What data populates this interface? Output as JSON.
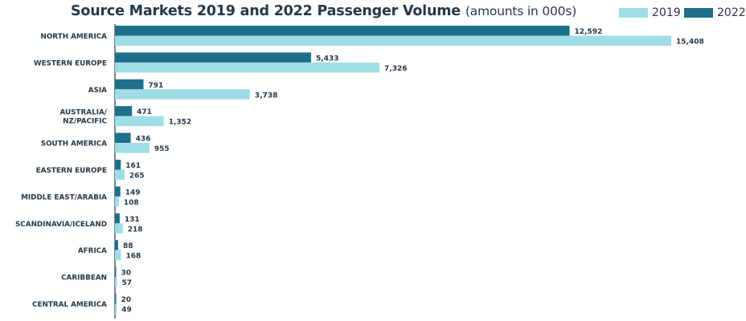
{
  "chart_data": {
    "type": "bar",
    "orientation": "horizontal",
    "title": "Source Markets 2019 and 2022 Passenger Volume",
    "subtitle": "(amounts in 000s)",
    "colors": {
      "2022": "#1e6f8a",
      "2019": "#9fdde6",
      "axis": "#24384a",
      "text": "#24384a"
    },
    "legend": {
      "placement": "top-right",
      "entries": [
        "2019",
        "2022"
      ]
    },
    "categories": [
      "NORTH AMERICA",
      "WESTERN EUROPE",
      "ASIA",
      "AUSTRALIA/\nNZ/PACIFIC",
      "SOUTH AMERICA",
      "EASTERN EUROPE",
      "MIDDLE EAST/ARABIA",
      "SCANDINAVIA/ICELAND",
      "AFRICA",
      "CARIBBEAN",
      "CENTRAL AMERICA"
    ],
    "series": [
      {
        "name": "2022",
        "values": [
          12592,
          5433,
          791,
          471,
          436,
          161,
          149,
          131,
          88,
          30,
          20
        ],
        "labels": [
          "12,592",
          "5,433",
          "791",
          "471",
          "436",
          "161",
          "149",
          "131",
          "88",
          "30",
          "20"
        ]
      },
      {
        "name": "2019",
        "values": [
          15408,
          7326,
          3738,
          1352,
          955,
          265,
          108,
          218,
          168,
          57,
          49
        ],
        "labels": [
          "15,408",
          "7,326",
          "3,738",
          "1,352",
          "955",
          "265",
          "108",
          "218",
          "168",
          "57",
          "49"
        ]
      }
    ],
    "xlim": [
      0,
      15408
    ],
    "grid": false
  }
}
